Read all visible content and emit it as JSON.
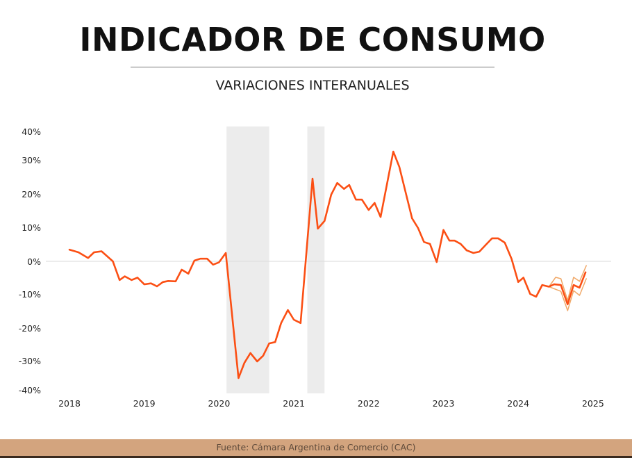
{
  "header": {
    "title": "INDICADOR DE CONSUMO",
    "subtitle": "VARIACIONES INTERANUALES"
  },
  "footer": {
    "source": "Fuente:  Cámara Argentina de Comercio (CAC)"
  },
  "colors": {
    "line": "#fb4f14",
    "band": "#f0a868",
    "shade": "#ececec",
    "zero": "#e0e0e0",
    "footer": "#d3a47e"
  },
  "chart_data": {
    "type": "line",
    "title": "INDICADOR DE CONSUMO",
    "subtitle": "VARIACIONES INTERANUALES",
    "xlabel": "",
    "ylabel": "",
    "xlim": [
      2018,
      2025.2
    ],
    "ylim": [
      -40,
      40
    ],
    "x_ticks": [
      2018,
      2019,
      2020,
      2021,
      2022,
      2023,
      2024,
      2025
    ],
    "x_tick_labels": [
      "2018",
      "2019",
      "2020",
      "2021",
      "2022",
      "2023",
      "2024",
      "2025"
    ],
    "y_ticks": [
      40,
      30,
      20,
      10,
      0,
      -10,
      -20,
      -30,
      -40
    ],
    "y_tick_labels": [
      "40%",
      "30%",
      "20%",
      "10%",
      "0%",
      "-10%",
      "-20%",
      "-30%",
      "-40%"
    ],
    "grid": false,
    "shaded_periods": [
      [
        2020.1,
        2020.67
      ],
      [
        2021.18,
        2021.41
      ]
    ],
    "series": [
      {
        "role": "main",
        "x": [
          2018.0,
          2018.12,
          2018.25,
          2018.33,
          2018.43,
          2018.58,
          2018.67,
          2018.74,
          2018.83,
          2018.91,
          2019.0,
          2019.09,
          2019.17,
          2019.25,
          2019.32,
          2019.42,
          2019.5,
          2019.59,
          2019.67,
          2019.75,
          2019.84,
          2019.92,
          2020.0,
          2020.09,
          2020.26,
          2020.34,
          2020.42,
          2020.51,
          2020.59,
          2020.67,
          2020.75,
          2020.83,
          2020.92,
          2021.0,
          2021.09,
          2021.25,
          2021.32,
          2021.41,
          2021.5,
          2021.58,
          2021.67,
          2021.74,
          2021.83,
          2021.91,
          2022.0,
          2022.08,
          2022.16,
          2022.33,
          2022.41,
          2022.58,
          2022.66,
          2022.74,
          2022.82,
          2022.91,
          2023.0,
          2023.08,
          2023.15,
          2023.23,
          2023.31,
          2023.4,
          2023.48,
          2023.56,
          2023.65,
          2023.73,
          2023.82,
          2023.91,
          2024.0,
          2024.07,
          2024.16,
          2024.24,
          2024.32,
          2024.41,
          2024.48,
          2024.57,
          2024.66,
          2024.74,
          2024.82,
          2024.9
        ],
        "y": [
          3.5,
          2.7,
          1.0,
          2.7,
          3.0,
          0.0,
          -5.6,
          -4.5,
          -5.6,
          -4.9,
          -6.9,
          -6.6,
          -7.5,
          -6.2,
          -5.9,
          -6.0,
          -2.5,
          -3.7,
          0.2,
          0.8,
          0.8,
          -1.0,
          -0.3,
          2.5,
          -35.0,
          -30.4,
          -27.5,
          -30.0,
          -28.3,
          -24.6,
          -24.2,
          -18.5,
          -14.6,
          -17.5,
          -18.5,
          24.8,
          9.8,
          12.1,
          20.0,
          23.5,
          21.7,
          22.9,
          18.5,
          18.5,
          15.4,
          17.5,
          13.3,
          32.9,
          28.3,
          12.9,
          10.0,
          5.8,
          5.2,
          -0.2,
          9.4,
          6.2,
          6.2,
          5.2,
          3.3,
          2.5,
          2.9,
          4.8,
          6.9,
          6.9,
          5.6,
          0.8,
          -6.2,
          -4.9,
          -9.8,
          -10.6,
          -7.1,
          -7.6,
          -6.9,
          -7.1,
          -12.9,
          -7.1,
          -7.9,
          -3.3
        ]
      },
      {
        "role": "upper",
        "x": [
          2024.41,
          2024.5,
          2024.57,
          2024.66,
          2024.74,
          2024.82,
          2024.91
        ],
        "y": [
          -7.6,
          -4.8,
          -5.2,
          -11.7,
          -4.8,
          -6.0,
          -1.3
        ]
      },
      {
        "role": "lower",
        "x": [
          2024.41,
          2024.57,
          2024.66,
          2024.74,
          2024.82,
          2024.91
        ],
        "y": [
          -7.6,
          -9.0,
          -14.8,
          -8.8,
          -10.2,
          -5.2
        ]
      }
    ]
  }
}
